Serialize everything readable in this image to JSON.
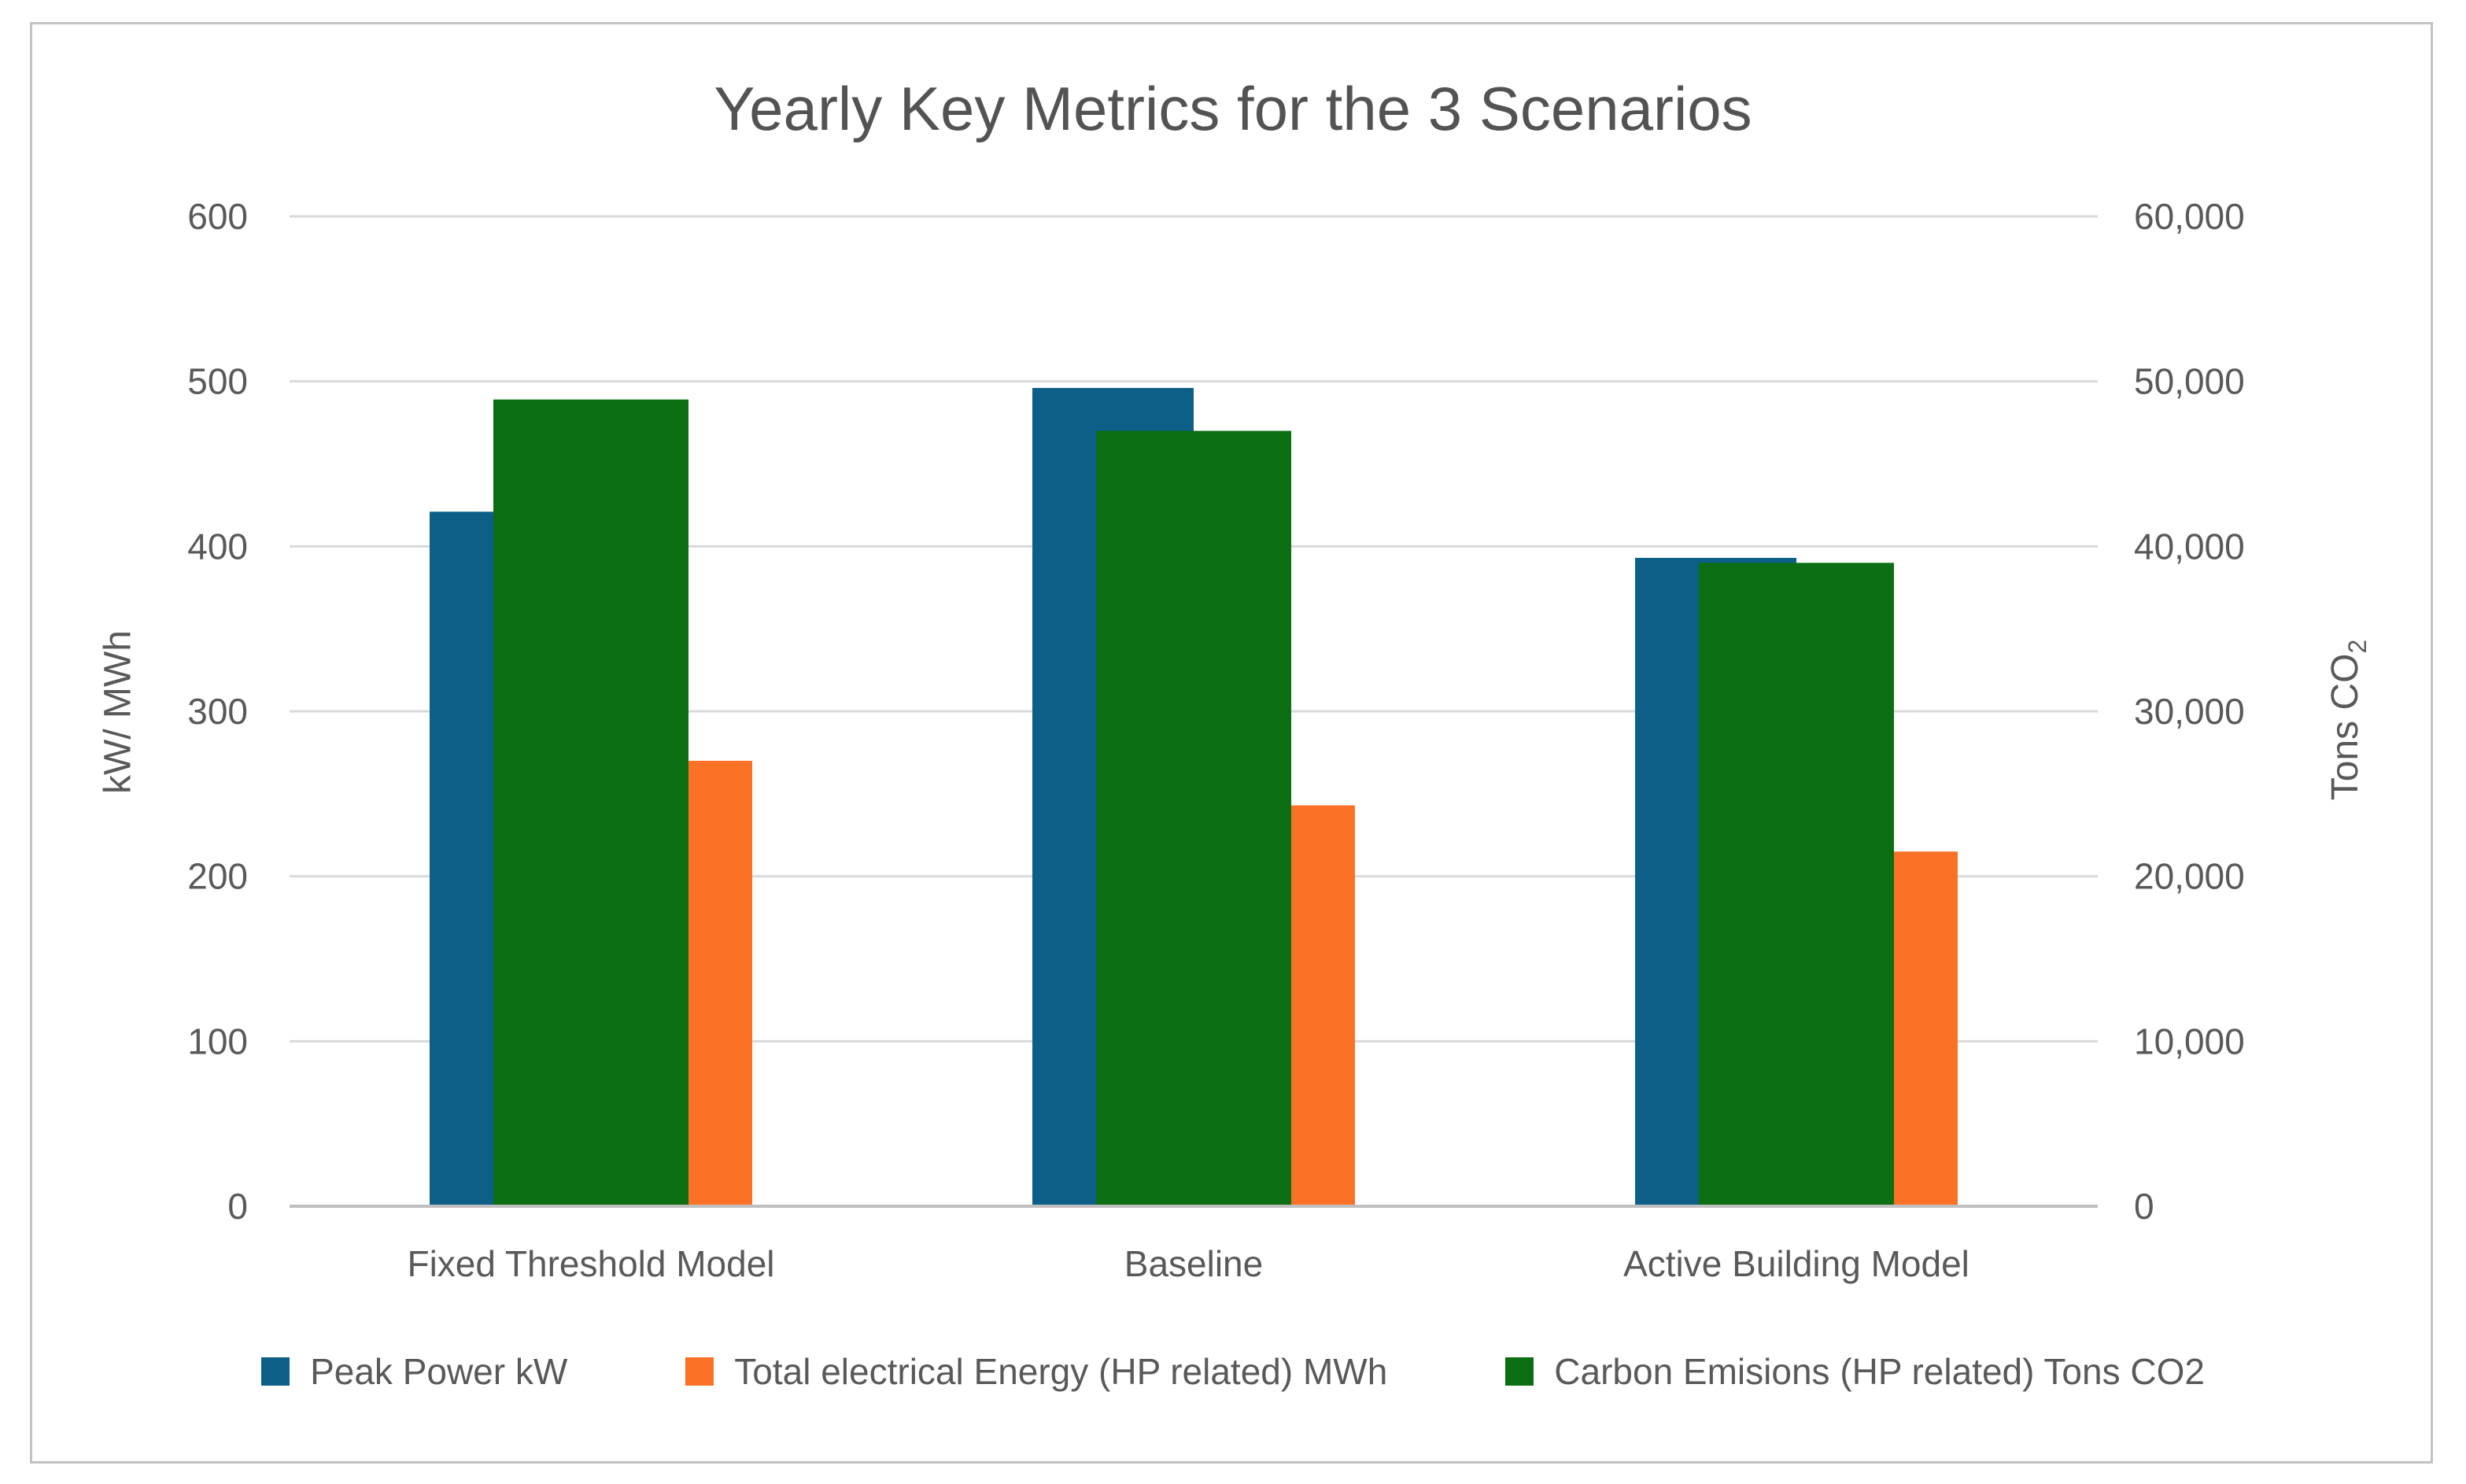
{
  "chart_data": {
    "type": "bar",
    "title": "Yearly Key Metrics for the 3 Scenarios",
    "categories": [
      "Fixed Threshold Model",
      "Baseline",
      "Active Building Model"
    ],
    "series": [
      {
        "name": "Peak Power kW",
        "axis": "primary",
        "color": "#0E5F87",
        "values": [
          421,
          496,
          393
        ]
      },
      {
        "name": "Total electrical Energy (HP related) MWh",
        "axis": "primary",
        "color": "#FB7227",
        "values": [
          270,
          243,
          215
        ]
      },
      {
        "name": "Carbon Emisions (HP related) Tons CO2",
        "axis": "secondary",
        "color": "#0C6E13",
        "values": [
          48900,
          47000,
          39000
        ]
      }
    ],
    "left_axis": {
      "title": "kW/ MWh",
      "min": 0,
      "max": 600,
      "step": 100,
      "tick_labels": [
        "0",
        "100",
        "200",
        "300",
        "400",
        "500",
        "600"
      ]
    },
    "right_axis": {
      "title_prefix": "Tons CO",
      "title_sub": "2",
      "min": 0,
      "max": 60000,
      "step": 10000,
      "tick_labels": [
        "0",
        "10,000",
        "20,000",
        "30,000",
        "40,000",
        "50,000",
        "60,000"
      ]
    },
    "grid": true,
    "legend_position": "bottom"
  },
  "colors": {
    "text": "#595959",
    "title_text": "#535353",
    "gridline": "#D9D9D9",
    "axis_line": "#BFBFBF",
    "frame_border": "#C2C2C2",
    "series_blue": "#0E5F87",
    "series_orange": "#FB7227",
    "series_green": "#0C6E13"
  }
}
